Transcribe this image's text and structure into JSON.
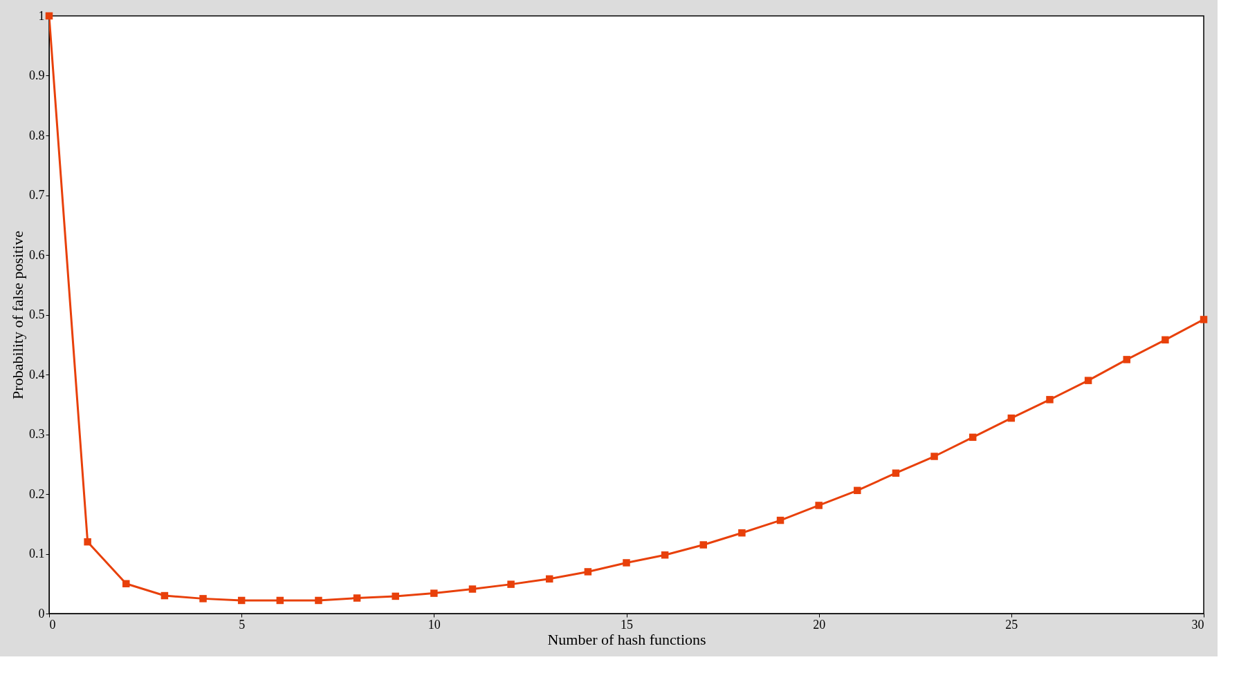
{
  "chart_data": {
    "type": "line",
    "xlabel": "Number of hash functions",
    "ylabel": "Probability of false positive",
    "x": [
      0,
      1,
      2,
      3,
      4,
      5,
      6,
      7,
      8,
      9,
      10,
      11,
      12,
      13,
      14,
      15,
      16,
      17,
      18,
      19,
      20,
      21,
      22,
      23,
      24,
      25,
      26,
      27,
      28,
      29,
      30
    ],
    "series": [
      {
        "color": "#e8400a",
        "values": [
          1.0,
          0.12,
          0.05,
          0.03,
          0.025,
          0.022,
          0.022,
          0.022,
          0.026,
          0.029,
          0.034,
          0.041,
          0.049,
          0.058,
          0.07,
          0.085,
          0.098,
          0.115,
          0.135,
          0.156,
          0.181,
          0.206,
          0.235,
          0.263,
          0.295,
          0.327,
          0.358,
          0.39,
          0.425,
          0.458,
          0.492
        ]
      }
    ],
    "xlim": [
      0,
      30
    ],
    "xticks": [
      0,
      5,
      10,
      15,
      20,
      25,
      30
    ],
    "ylim": [
      0,
      1
    ],
    "yticks": [
      0,
      0.1,
      0.2,
      0.3,
      0.4,
      0.5,
      0.6,
      0.7,
      0.8,
      0.9,
      1
    ],
    "marker": "square",
    "line_style": "solid",
    "grid": false,
    "legend": false
  }
}
